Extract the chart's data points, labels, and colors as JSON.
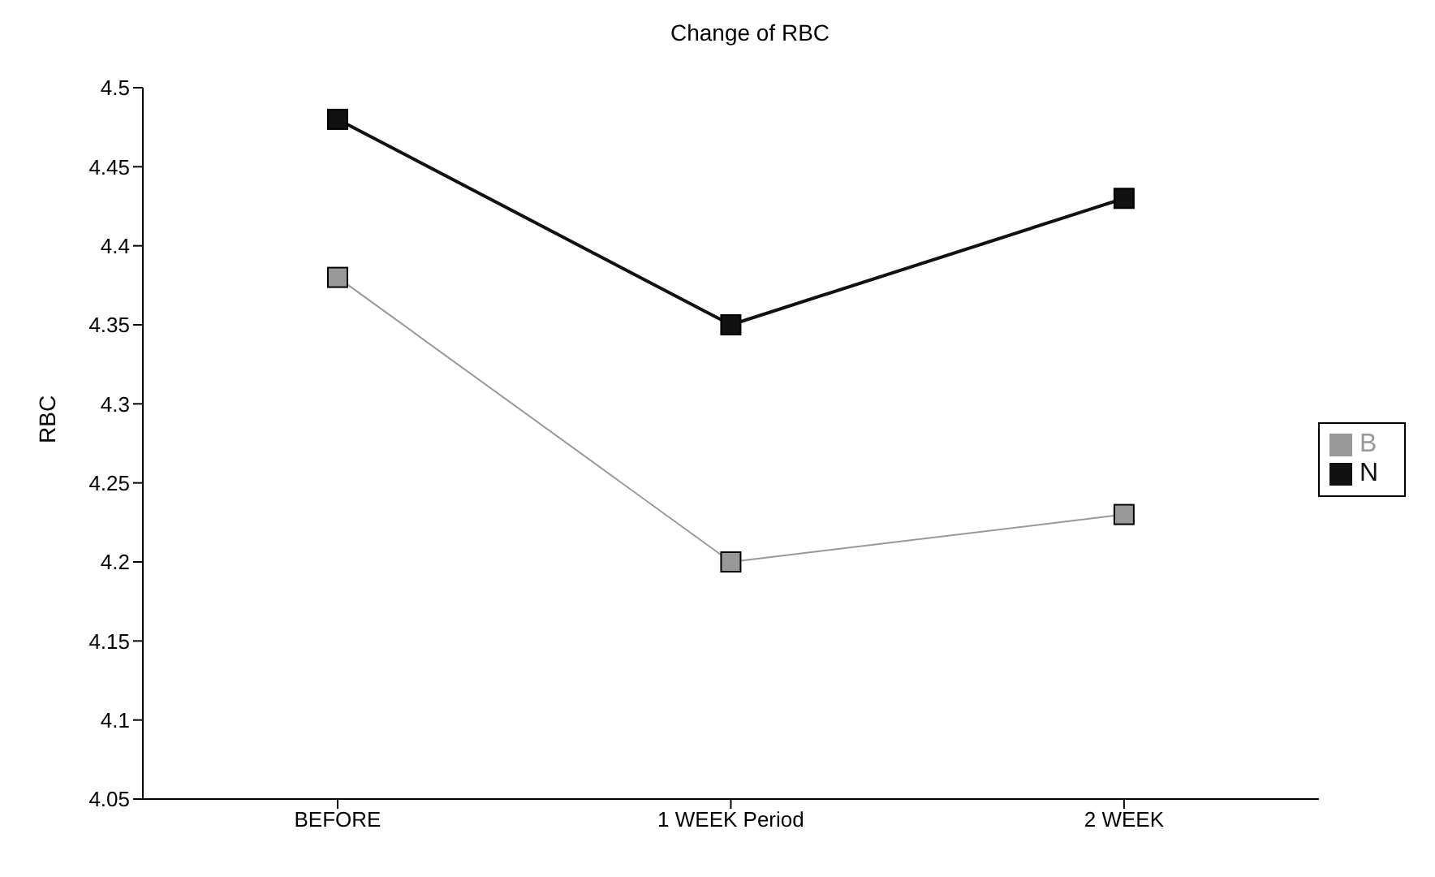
{
  "chart_data": {
    "type": "line",
    "title": "Change of RBC",
    "ylabel": "RBC",
    "categories": [
      "BEFORE",
      "1 WEEK Period",
      "2 WEEK"
    ],
    "series": [
      {
        "name": "N",
        "color": "#111111",
        "values": [
          4.48,
          4.35,
          4.43
        ]
      },
      {
        "name": "B",
        "color": "#999999",
        "values": [
          4.38,
          4.2,
          4.23
        ]
      }
    ],
    "ylim": [
      4.05,
      4.5
    ],
    "yticks": [
      4.05,
      4.1,
      4.15,
      4.2,
      4.25,
      4.3,
      4.35,
      4.4,
      4.45,
      4.5
    ],
    "grid": false,
    "legend": "right",
    "marker": "square",
    "line_style": "solid"
  }
}
